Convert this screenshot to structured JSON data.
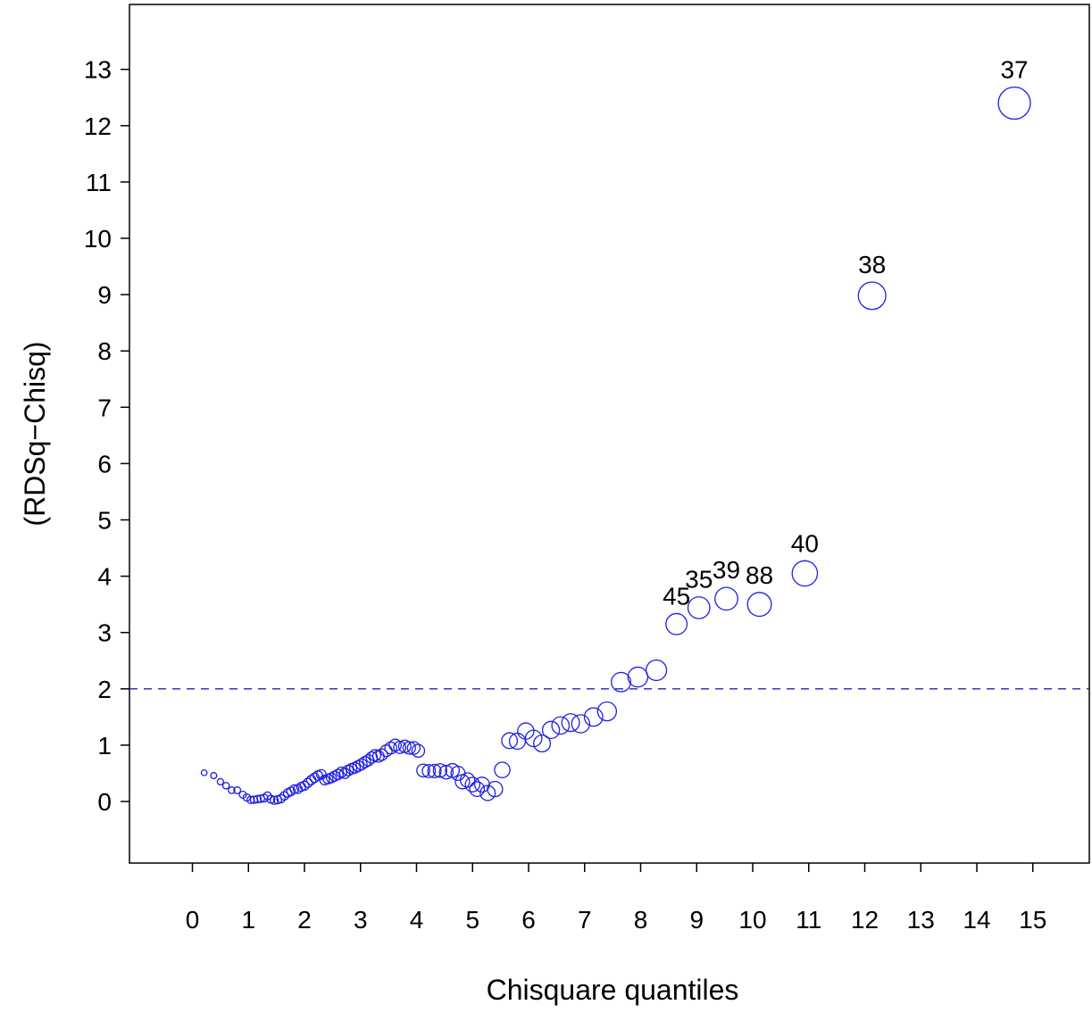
{
  "chart_data": {
    "type": "scatter",
    "xlabel": "Chisquare  quantiles",
    "ylabel": "(RDSq−Chisq)",
    "xlim": [
      -1,
      16.2
    ],
    "ylim": [
      -1.1,
      14.2
    ],
    "xticks": [
      0,
      1,
      2,
      3,
      4,
      5,
      6,
      7,
      8,
      9,
      10,
      11,
      12,
      13,
      14,
      15
    ],
    "yticks": [
      0,
      1,
      2,
      3,
      4,
      5,
      6,
      7,
      8,
      9,
      10,
      11,
      12,
      13
    ],
    "reference_line": {
      "y": 2,
      "style": "dashed",
      "color": "#2020c0"
    },
    "marker": {
      "shape": "open-circle",
      "color": "#2020e0",
      "size_scales_with_x": true
    },
    "grid": false,
    "points": [
      {
        "x": 0.21,
        "y": 0.51
      },
      {
        "x": 0.38,
        "y": 0.46
      },
      {
        "x": 0.5,
        "y": 0.35
      },
      {
        "x": 0.6,
        "y": 0.28
      },
      {
        "x": 0.7,
        "y": 0.2
      },
      {
        "x": 0.8,
        "y": 0.2
      },
      {
        "x": 0.9,
        "y": 0.12
      },
      {
        "x": 0.97,
        "y": 0.07
      },
      {
        "x": 1.04,
        "y": 0.03
      },
      {
        "x": 1.1,
        "y": 0.03
      },
      {
        "x": 1.16,
        "y": 0.04
      },
      {
        "x": 1.22,
        "y": 0.05
      },
      {
        "x": 1.28,
        "y": 0.06
      },
      {
        "x": 1.34,
        "y": 0.1
      },
      {
        "x": 1.4,
        "y": 0.04
      },
      {
        "x": 1.46,
        "y": 0.02
      },
      {
        "x": 1.52,
        "y": 0.03
      },
      {
        "x": 1.58,
        "y": 0.05
      },
      {
        "x": 1.64,
        "y": 0.1
      },
      {
        "x": 1.7,
        "y": 0.15
      },
      {
        "x": 1.76,
        "y": 0.18
      },
      {
        "x": 1.82,
        "y": 0.22
      },
      {
        "x": 1.88,
        "y": 0.22
      },
      {
        "x": 1.94,
        "y": 0.26
      },
      {
        "x": 2.0,
        "y": 0.28
      },
      {
        "x": 2.06,
        "y": 0.33
      },
      {
        "x": 2.12,
        "y": 0.38
      },
      {
        "x": 2.18,
        "y": 0.42
      },
      {
        "x": 2.24,
        "y": 0.46
      },
      {
        "x": 2.3,
        "y": 0.48
      },
      {
        "x": 2.36,
        "y": 0.38
      },
      {
        "x": 2.42,
        "y": 0.4
      },
      {
        "x": 2.48,
        "y": 0.42
      },
      {
        "x": 2.54,
        "y": 0.45
      },
      {
        "x": 2.6,
        "y": 0.48
      },
      {
        "x": 2.66,
        "y": 0.52
      },
      {
        "x": 2.72,
        "y": 0.5
      },
      {
        "x": 2.78,
        "y": 0.55
      },
      {
        "x": 2.84,
        "y": 0.58
      },
      {
        "x": 2.9,
        "y": 0.6
      },
      {
        "x": 2.96,
        "y": 0.63
      },
      {
        "x": 3.02,
        "y": 0.66
      },
      {
        "x": 3.08,
        "y": 0.7
      },
      {
        "x": 3.14,
        "y": 0.73
      },
      {
        "x": 3.2,
        "y": 0.78
      },
      {
        "x": 3.26,
        "y": 0.82
      },
      {
        "x": 3.32,
        "y": 0.8
      },
      {
        "x": 3.38,
        "y": 0.83
      },
      {
        "x": 3.46,
        "y": 0.9
      },
      {
        "x": 3.54,
        "y": 0.95
      },
      {
        "x": 3.62,
        "y": 1.0
      },
      {
        "x": 3.7,
        "y": 0.96
      },
      {
        "x": 3.79,
        "y": 0.98
      },
      {
        "x": 3.87,
        "y": 0.95
      },
      {
        "x": 3.95,
        "y": 0.95
      },
      {
        "x": 4.03,
        "y": 0.9
      },
      {
        "x": 4.12,
        "y": 0.55
      },
      {
        "x": 4.22,
        "y": 0.54
      },
      {
        "x": 4.32,
        "y": 0.54
      },
      {
        "x": 4.42,
        "y": 0.55
      },
      {
        "x": 4.53,
        "y": 0.52
      },
      {
        "x": 4.64,
        "y": 0.55
      },
      {
        "x": 4.74,
        "y": 0.5
      },
      {
        "x": 4.82,
        "y": 0.35
      },
      {
        "x": 4.91,
        "y": 0.38
      },
      {
        "x": 5.0,
        "y": 0.3
      },
      {
        "x": 5.08,
        "y": 0.22
      },
      {
        "x": 5.17,
        "y": 0.3
      },
      {
        "x": 5.27,
        "y": 0.15
      },
      {
        "x": 5.4,
        "y": 0.22
      },
      {
        "x": 5.53,
        "y": 0.56
      },
      {
        "x": 5.66,
        "y": 1.08
      },
      {
        "x": 5.8,
        "y": 1.07
      },
      {
        "x": 5.95,
        "y": 1.25
      },
      {
        "x": 6.09,
        "y": 1.12
      },
      {
        "x": 6.24,
        "y": 1.03
      },
      {
        "x": 6.4,
        "y": 1.27
      },
      {
        "x": 6.57,
        "y": 1.35
      },
      {
        "x": 6.75,
        "y": 1.4
      },
      {
        "x": 6.93,
        "y": 1.38
      },
      {
        "x": 7.16,
        "y": 1.5
      },
      {
        "x": 7.4,
        "y": 1.6
      },
      {
        "x": 7.65,
        "y": 2.12
      },
      {
        "x": 7.95,
        "y": 2.21
      },
      {
        "x": 8.28,
        "y": 2.33
      },
      {
        "x": 8.64,
        "y": 3.15,
        "label": "45"
      },
      {
        "x": 9.04,
        "y": 3.44,
        "label": "35"
      },
      {
        "x": 9.53,
        "y": 3.6,
        "label": "39"
      },
      {
        "x": 10.12,
        "y": 3.5,
        "label": "88"
      },
      {
        "x": 10.93,
        "y": 4.05,
        "label": "40"
      },
      {
        "x": 12.13,
        "y": 8.98,
        "label": "38"
      },
      {
        "x": 14.67,
        "y": 12.4,
        "label": "37"
      }
    ]
  }
}
